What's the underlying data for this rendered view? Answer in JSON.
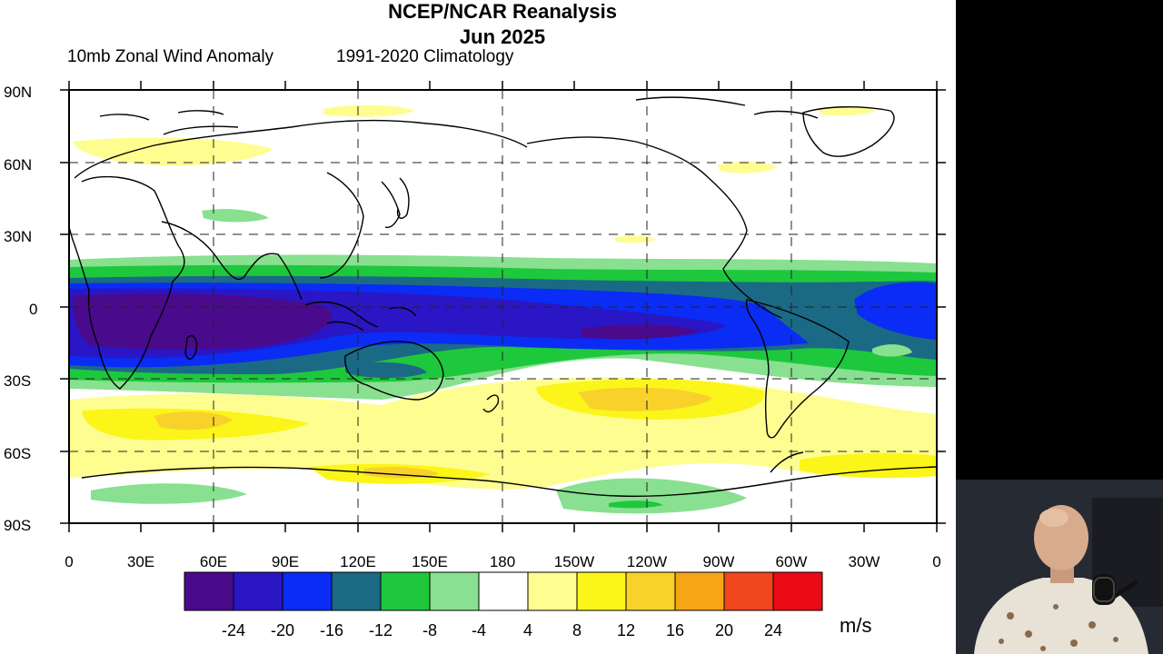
{
  "map": {
    "title_line1": "NCEP/NCAR Reanalysis",
    "title_line2": "Jun 2025",
    "subtitle_left": "10mb Zonal Wind Anomaly",
    "subtitle_right": "1991-2020 Climatology",
    "lat_labels": [
      "90N",
      "60N",
      "30N",
      "0",
      "30S",
      "60S",
      "90S"
    ],
    "lon_labels": [
      "0",
      "30E",
      "60E",
      "90E",
      "120E",
      "150E",
      "180",
      "150W",
      "120W",
      "90W",
      "60W",
      "30W",
      "0"
    ],
    "colorbar": {
      "labels": [
        "-24",
        "-20",
        "-16",
        "-12",
        "-8",
        "-4",
        "4",
        "8",
        "12",
        "16",
        "20",
        "24"
      ],
      "colors": [
        "#4a0a8c",
        "#2a16c4",
        "#0a2cf4",
        "#1a6a86",
        "#1ec83c",
        "#88e090",
        "#ffffff",
        "#fefe90",
        "#fbf51a",
        "#f8d22a",
        "#f6a516",
        "#f0461e",
        "#ec0a14"
      ],
      "units": "m/s"
    },
    "palette": {
      "deep_purple": "#4a0a8c",
      "indigo": "#2a16c4",
      "blue": "#0a2cf4",
      "teal": "#1a6a86",
      "green": "#1ec83c",
      "light_green": "#88e090",
      "light_yellow": "#fefe90",
      "yellow": "#fbf51a",
      "gold": "#f8d22a"
    }
  },
  "webcam": {
    "description_icon": "presenter-webcam-icon"
  }
}
